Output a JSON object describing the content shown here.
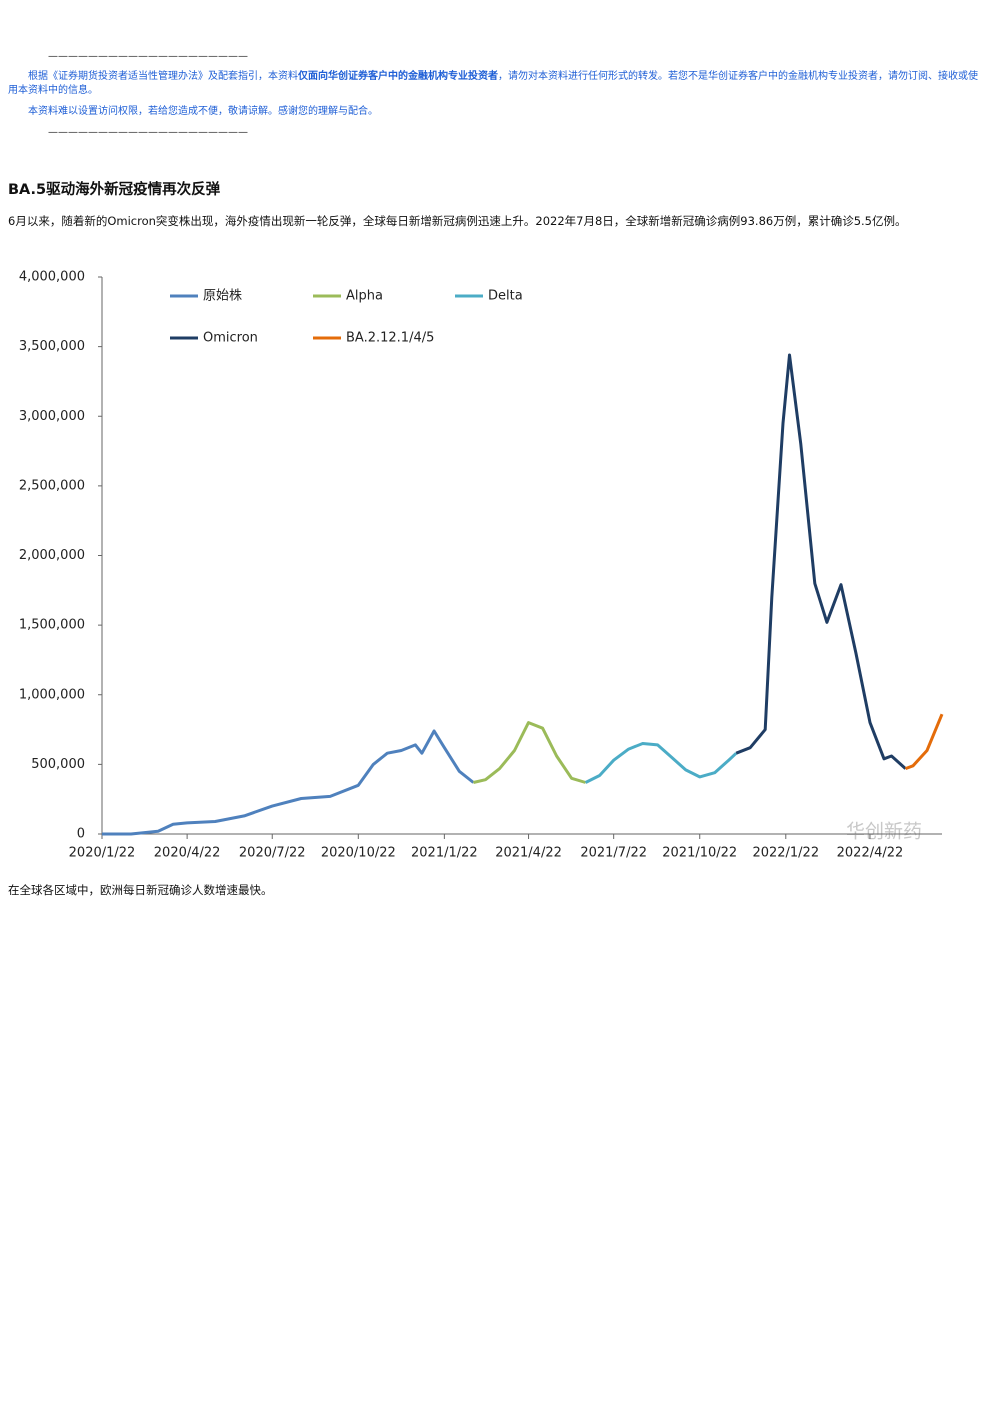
{
  "notice": {
    "rule_top": "————————————————————",
    "text_before": "根据《证券期货投资者适当性管理办法》及配套指引，本资料",
    "text_bold": "仅面向华创证券客户中的金融机构专业投资者",
    "text_after": "，请勿对本资料进行任何形式的转发。若您不是华创证券客户中的金融机构专业投资者，请勿订阅、接收或使用本资料中的信息。",
    "text_second": "本资料难以设置访问权限，若给您造成不便，敬请谅解。感谢您的理解与配合。",
    "rule_bottom": "————————————————————"
  },
  "heading": "BA.5驱动海外新冠疫情再次反弹",
  "paragraph": "6月以来，随着新的Omicron突变株出现，海外疫情出现新一轮反弹，全球每日新增新冠病例迅速上升。2022年7月8日，全球新增新冠确诊病例93.86万例，累计确诊5.5亿例。",
  "chart_data": {
    "type": "line",
    "x": [
      "2020/1/22",
      "2020/2/22",
      "2020/3/22",
      "2020/4/7",
      "2020/4/22",
      "2020/5/22",
      "2020/6/22",
      "2020/7/22",
      "2020/8/22",
      "2020/9/22",
      "2020/10/22",
      "2020/11/7",
      "2020/11/22",
      "2020/12/7",
      "2020/12/22",
      "2020/12/29",
      "2021/1/11",
      "2021/1/22",
      "2021/2/7",
      "2021/2/22",
      "2021/3/7",
      "2021/3/22",
      "2021/4/7",
      "2021/4/22",
      "2021/5/7",
      "2021/5/22",
      "2021/6/7",
      "2021/6/22",
      "2021/7/7",
      "2021/7/22",
      "2021/8/7",
      "2021/8/22",
      "2021/9/7",
      "2021/9/22",
      "2021/10/7",
      "2021/10/22",
      "2021/11/7",
      "2021/11/22",
      "2021/11/30",
      "2021/12/15",
      "2021/12/31",
      "2022/1/7",
      "2022/1/19",
      "2022/1/26",
      "2022/2/7",
      "2022/2/22",
      "2022/3/7",
      "2022/3/22",
      "2022/4/7",
      "2022/4/22",
      "2022/5/7",
      "2022/5/15",
      "2022/5/30",
      "2022/6/7",
      "2022/6/22",
      "2022/7/8"
    ],
    "series": [
      {
        "name": "原始株",
        "color": "#4f81bd",
        "values": [
          0,
          0,
          20000,
          70000,
          80000,
          90000,
          130000,
          200000,
          255000,
          270000,
          350000,
          500000,
          580000,
          600000,
          640000,
          580000,
          740000,
          620000,
          450000,
          370000,
          null,
          null,
          null,
          null,
          null,
          null,
          null,
          null,
          null,
          null,
          null,
          null,
          null,
          null,
          null,
          null,
          null,
          null,
          null,
          null,
          null,
          null,
          null,
          null,
          null,
          null,
          null,
          null,
          null,
          null,
          null,
          null,
          null,
          null,
          null,
          null
        ]
      },
      {
        "name": "Alpha",
        "color": "#9bbb59",
        "values": [
          null,
          null,
          null,
          null,
          null,
          null,
          null,
          null,
          null,
          null,
          null,
          null,
          null,
          null,
          null,
          null,
          null,
          null,
          null,
          370000,
          390000,
          470000,
          600000,
          800000,
          760000,
          560000,
          400000,
          370000,
          null,
          null,
          null,
          null,
          null,
          null,
          null,
          null,
          null,
          null,
          null,
          null,
          null,
          null,
          null,
          null,
          null,
          null,
          null,
          null,
          null,
          null,
          null,
          null,
          null,
          null,
          null,
          null
        ]
      },
      {
        "name": "Delta",
        "color": "#4bacc6",
        "values": [
          null,
          null,
          null,
          null,
          null,
          null,
          null,
          null,
          null,
          null,
          null,
          null,
          null,
          null,
          null,
          null,
          null,
          null,
          null,
          null,
          null,
          null,
          null,
          null,
          null,
          null,
          null,
          370000,
          420000,
          530000,
          610000,
          650000,
          640000,
          550000,
          460000,
          410000,
          440000,
          530000,
          580000,
          null,
          null,
          null,
          null,
          null,
          null,
          null,
          null,
          null,
          null,
          null,
          null,
          null,
          null,
          null,
          null,
          null
        ]
      },
      {
        "name": "Omicron",
        "color": "#1f3d64",
        "values": [
          null,
          null,
          null,
          null,
          null,
          null,
          null,
          null,
          null,
          null,
          null,
          null,
          null,
          null,
          null,
          null,
          null,
          null,
          null,
          null,
          null,
          null,
          null,
          null,
          null,
          null,
          null,
          null,
          null,
          null,
          null,
          null,
          null,
          null,
          null,
          null,
          null,
          null,
          580000,
          620000,
          750000,
          1700000,
          2950000,
          3440000,
          2800000,
          1800000,
          1520000,
          1790000,
          1300000,
          800000,
          540000,
          560000,
          470000,
          null,
          null,
          null
        ]
      },
      {
        "name": "BA.2.12.1/4/5",
        "color": "#e46c0a",
        "values": [
          null,
          null,
          null,
          null,
          null,
          null,
          null,
          null,
          null,
          null,
          null,
          null,
          null,
          null,
          null,
          null,
          null,
          null,
          null,
          null,
          null,
          null,
          null,
          null,
          null,
          null,
          null,
          null,
          null,
          null,
          null,
          null,
          null,
          null,
          null,
          null,
          null,
          null,
          null,
          null,
          null,
          null,
          null,
          null,
          null,
          null,
          null,
          null,
          null,
          null,
          null,
          null,
          470000,
          490000,
          600000,
          860000
        ]
      }
    ],
    "xlim": [
      "2020/1/22",
      "2022/7/8"
    ],
    "xticks": [
      "2020/1/22",
      "2020/4/22",
      "2020/7/22",
      "2020/10/22",
      "2021/1/22",
      "2021/4/22",
      "2021/7/22",
      "2021/10/22",
      "2022/1/22",
      "2022/4/22"
    ],
    "ylim": [
      0,
      4000000
    ],
    "yticks": [
      0,
      {
        "value": 500000,
        "label": "500,000"
      },
      {
        "value": 1000000,
        "label": "1,000,000"
      },
      {
        "value": 1500000,
        "label": "1,500,000"
      },
      {
        "value": 2000000,
        "label": "2,000,000"
      },
      {
        "value": 2500000,
        "label": "2,500,000"
      },
      {
        "value": 3000000,
        "label": "3,000,000"
      },
      {
        "value": 3500000,
        "label": "3,500,000"
      },
      {
        "value": 4000000,
        "label": "4,000,000"
      }
    ],
    "grid": false,
    "legend": "top-left"
  },
  "watermark": "华创新药",
  "caption": "在全球各区域中，欧洲每日新冠确诊人数增速最快。"
}
